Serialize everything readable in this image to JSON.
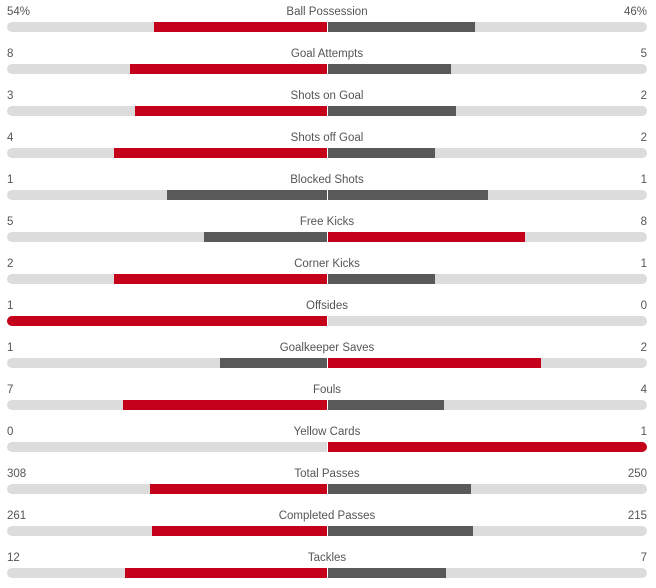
{
  "colors": {
    "leading": "#c4001a",
    "trailing": "#595959",
    "track": "#dcdcdc"
  },
  "stats": [
    {
      "name": "Ball Possession",
      "home": "54%",
      "away": "46%",
      "home_share": 0.54,
      "away_share": 0.46
    },
    {
      "name": "Goal Attempts",
      "home": "8",
      "away": "5",
      "home_share": 0.615,
      "away_share": 0.385
    },
    {
      "name": "Shots on Goal",
      "home": "3",
      "away": "2",
      "home_share": 0.6,
      "away_share": 0.4
    },
    {
      "name": "Shots off Goal",
      "home": "4",
      "away": "2",
      "home_share": 0.667,
      "away_share": 0.333
    },
    {
      "name": "Blocked Shots",
      "home": "1",
      "away": "1",
      "home_share": 0.5,
      "away_share": 0.5
    },
    {
      "name": "Free Kicks",
      "home": "5",
      "away": "8",
      "home_share": 0.385,
      "away_share": 0.615
    },
    {
      "name": "Corner Kicks",
      "home": "2",
      "away": "1",
      "home_share": 0.667,
      "away_share": 0.333
    },
    {
      "name": "Offsides",
      "home": "1",
      "away": "0",
      "home_share": 1.0,
      "away_share": 0.0
    },
    {
      "name": "Goalkeeper Saves",
      "home": "1",
      "away": "2",
      "home_share": 0.333,
      "away_share": 0.667
    },
    {
      "name": "Fouls",
      "home": "7",
      "away": "4",
      "home_share": 0.636,
      "away_share": 0.364
    },
    {
      "name": "Yellow Cards",
      "home": "0",
      "away": "1",
      "home_share": 0.0,
      "away_share": 1.0
    },
    {
      "name": "Total Passes",
      "home": "308",
      "away": "250",
      "home_share": 0.552,
      "away_share": 0.448
    },
    {
      "name": "Completed Passes",
      "home": "261",
      "away": "215",
      "home_share": 0.548,
      "away_share": 0.452
    },
    {
      "name": "Tackles",
      "home": "12",
      "away": "7",
      "home_share": 0.632,
      "away_share": 0.368
    }
  ]
}
